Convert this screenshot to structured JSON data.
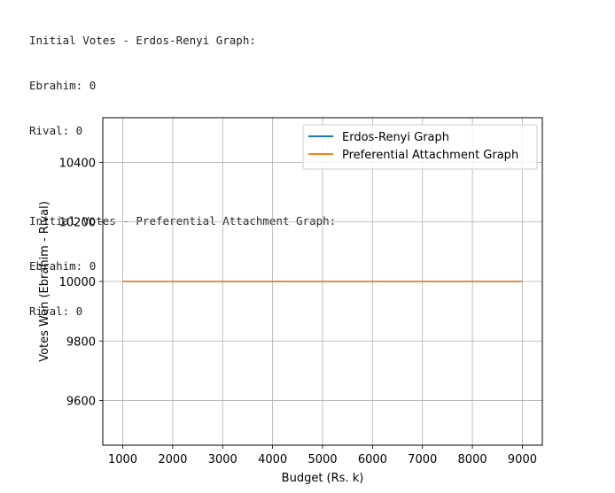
{
  "console": {
    "block1": {
      "heading": "Initial Votes - Erdos-Renyi Graph:",
      "line1": "Ebrahim: 0",
      "line2": "Rival: 0"
    },
    "block2": {
      "heading": "Initial Votes - Preferential Attachment Graph:",
      "line1": "Ebrahim: 0",
      "line2": "Rival: 0"
    }
  },
  "chart_data": {
    "type": "line",
    "xlabel": "Budget (Rs. k)",
    "ylabel": "Votes Won (Ebrahim - Rival)",
    "xlim": [
      600,
      9400
    ],
    "ylim": [
      9450,
      10550
    ],
    "x": [
      1000,
      2000,
      3000,
      4000,
      5000,
      6000,
      7000,
      8000,
      9000
    ],
    "xticks": [
      "1000",
      "2000",
      "3000",
      "4000",
      "5000",
      "6000",
      "7000",
      "8000",
      "9000"
    ],
    "yticks": [
      "9600",
      "9800",
      "10000",
      "10200",
      "10400"
    ],
    "grid": true,
    "legend_position": "upper right",
    "series": [
      {
        "name": "Erdos-Renyi Graph",
        "color": "#1f77b4",
        "values": [
          10000,
          10000,
          10000,
          10000,
          10000,
          10000,
          10000,
          10000,
          10000
        ]
      },
      {
        "name": "Preferential Attachment Graph",
        "color": "#ff7f0e",
        "values": [
          10000,
          10000,
          10000,
          10000,
          10000,
          10000,
          10000,
          10000,
          10000
        ]
      }
    ]
  }
}
